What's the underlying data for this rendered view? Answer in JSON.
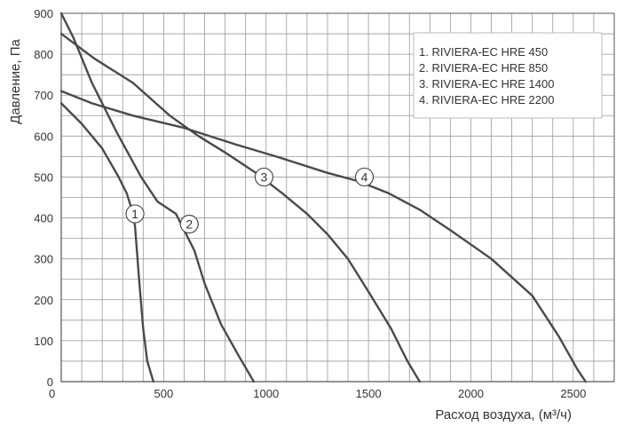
{
  "chart_data": {
    "type": "line",
    "xlabel": "Расход воздуха, (м³/ч)",
    "ylabel": "Давление, Па",
    "xlim": [
      0,
      2700
    ],
    "ylim": [
      0,
      900
    ],
    "x_ticks": [
      "0",
      "500",
      "1000",
      "1500",
      "2000",
      "2500"
    ],
    "y_ticks": [
      "0",
      "100",
      "200",
      "300",
      "400",
      "500",
      "600",
      "700",
      "800",
      "900"
    ],
    "grid": true,
    "legend_position": "top-right",
    "legend": [
      "1. RIVIERA-EC HRE 450",
      "2. RIVIERA-EC HRE 850",
      "3. RIVIERA-EC HRE 1400",
      "4. RIVIERA-EC HRE 2200"
    ],
    "line_color": "#4a4a4a",
    "series": [
      {
        "label": "1",
        "marker_at": [
          360,
          410
        ],
        "points": [
          [
            0,
            680
          ],
          [
            100,
            630
          ],
          [
            200,
            570
          ],
          [
            280,
            500
          ],
          [
            320,
            460
          ],
          [
            345,
            420
          ],
          [
            360,
            380
          ],
          [
            380,
            250
          ],
          [
            400,
            130
          ],
          [
            420,
            50
          ],
          [
            450,
            0
          ]
        ]
      },
      {
        "label": "2",
        "marker_at": [
          625,
          385
        ],
        "points": [
          [
            0,
            900
          ],
          [
            60,
            840
          ],
          [
            150,
            730
          ],
          [
            270,
            610
          ],
          [
            390,
            500
          ],
          [
            470,
            440
          ],
          [
            560,
            410
          ],
          [
            610,
            360
          ],
          [
            650,
            320
          ],
          [
            700,
            240
          ],
          [
            780,
            140
          ],
          [
            870,
            60
          ],
          [
            940,
            0
          ]
        ]
      },
      {
        "label": "3",
        "marker_at": [
          990,
          500
        ],
        "points": [
          [
            0,
            850
          ],
          [
            160,
            790
          ],
          [
            350,
            730
          ],
          [
            530,
            650
          ],
          [
            670,
            600
          ],
          [
            800,
            560
          ],
          [
            950,
            510
          ],
          [
            1080,
            460
          ],
          [
            1200,
            410
          ],
          [
            1300,
            360
          ],
          [
            1400,
            300
          ],
          [
            1500,
            220
          ],
          [
            1610,
            130
          ],
          [
            1690,
            50
          ],
          [
            1750,
            0
          ]
        ]
      },
      {
        "label": "4",
        "marker_at": [
          1480,
          500
        ],
        "points": [
          [
            0,
            710
          ],
          [
            150,
            680
          ],
          [
            350,
            650
          ],
          [
            600,
            620
          ],
          [
            850,
            580
          ],
          [
            1050,
            550
          ],
          [
            1300,
            510
          ],
          [
            1450,
            490
          ],
          [
            1600,
            460
          ],
          [
            1750,
            420
          ],
          [
            1900,
            370
          ],
          [
            2100,
            300
          ],
          [
            2300,
            210
          ],
          [
            2430,
            110
          ],
          [
            2520,
            30
          ],
          [
            2560,
            0
          ]
        ]
      }
    ]
  }
}
